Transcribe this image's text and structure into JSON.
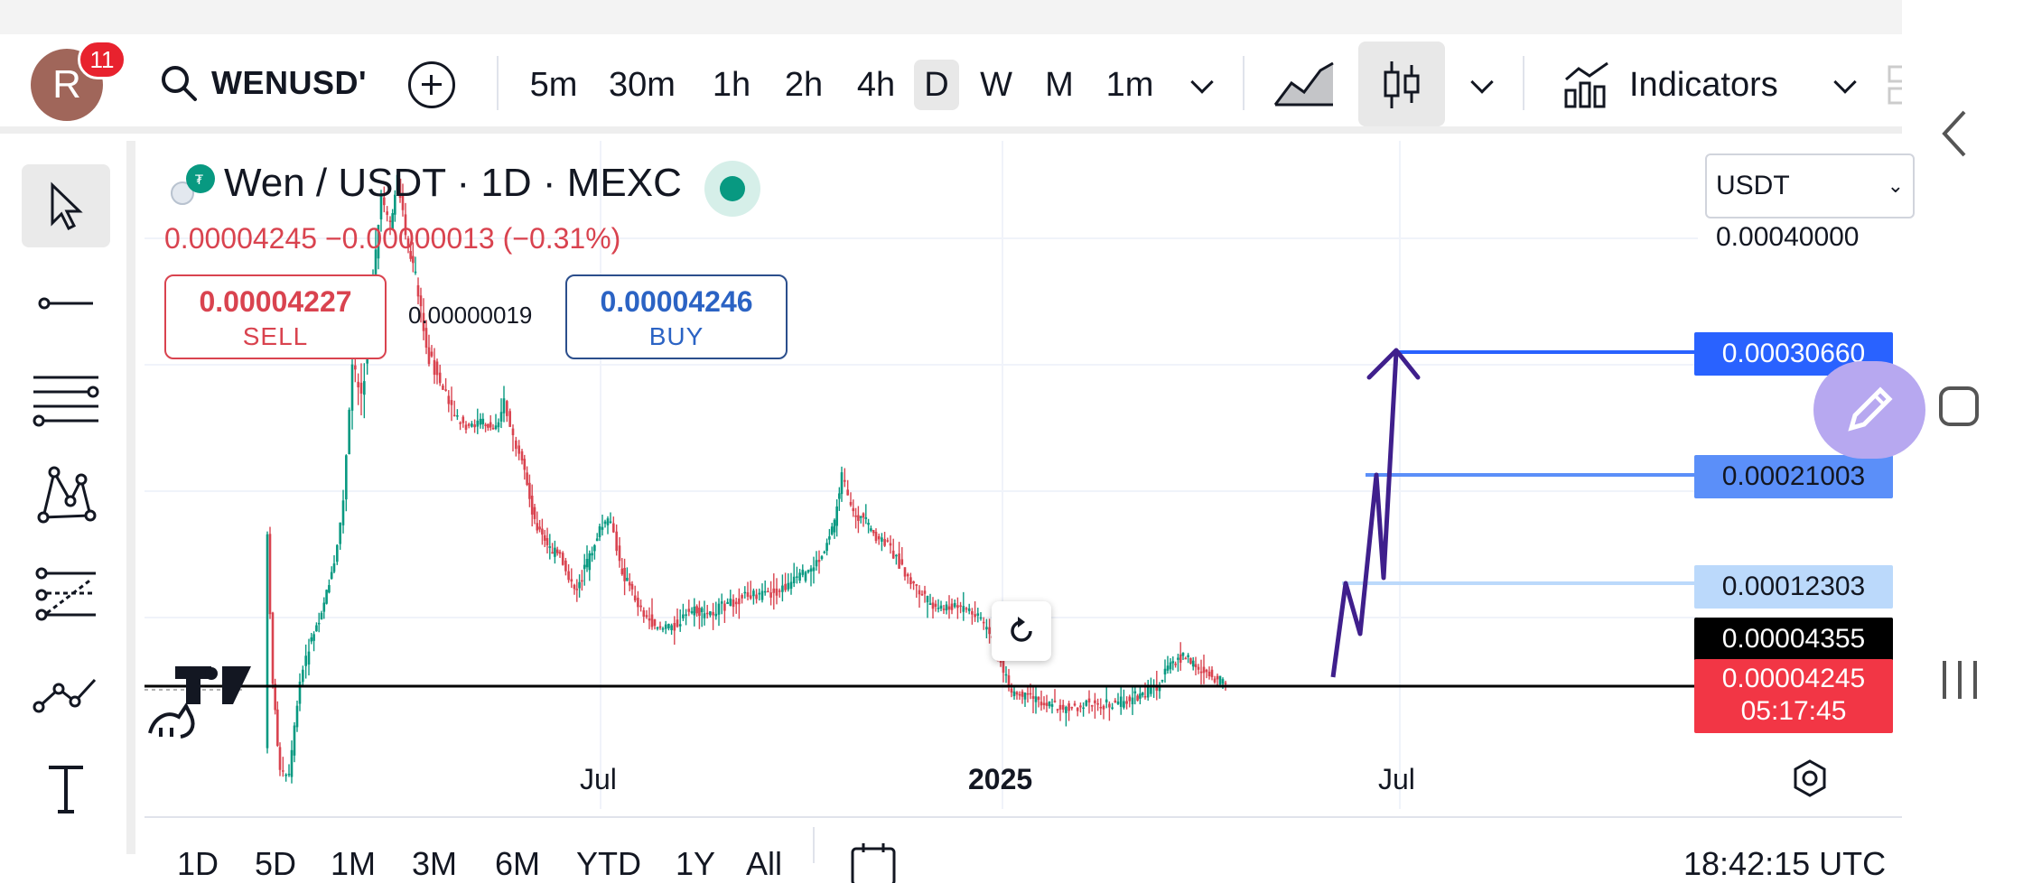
{
  "header": {
    "notification_count": "11",
    "avatar_initial": "R",
    "symbol": "WENUSD'",
    "intervals": [
      "5m",
      "30m",
      "1h",
      "2h",
      "4h",
      "D",
      "W",
      "M",
      "1m"
    ],
    "active_interval": "D",
    "indicators_label": "Indicators"
  },
  "legend": {
    "title": "Wen / USDT · 1D · MEXC",
    "ohlc": "0.00004245 −0.00000013 (−0.31%)",
    "sell_price": "0.00004227",
    "sell_label": "SELL",
    "spread": "0.00000019",
    "buy_price": "0.00004246",
    "buy_label": "BUY"
  },
  "currency": {
    "selected": "USDT"
  },
  "price_scale": {
    "top_label": "0.00040000",
    "labels": [
      {
        "text": "0.00030660",
        "bg": "#2962ff",
        "fg": "#ffffff"
      },
      {
        "text": "0.00021003",
        "bg": "#5b8ff9",
        "fg": "#131722"
      },
      {
        "text": "0.00012303",
        "bg": "#bbd9fb",
        "fg": "#131722"
      },
      {
        "text": "0.00004355",
        "bg": "#000000",
        "fg": "#ffffff"
      },
      {
        "text": "0.00004245",
        "bg": "#f23645",
        "fg": "#ffffff"
      }
    ],
    "countdown": "05:17:45"
  },
  "time_axis": {
    "labels": [
      "Jul",
      "2025",
      "Jul"
    ]
  },
  "bottom": {
    "ranges": [
      "1D",
      "5D",
      "1M",
      "3M",
      "6M",
      "YTD",
      "1Y",
      "All"
    ],
    "clock": "18:42:15 UTC"
  },
  "sidebar": {
    "tools": [
      "cursor-icon",
      "trend-line-icon",
      "fib-retracement-icon",
      "pattern-icon",
      "forecast-icon",
      "path-icon",
      "text-icon"
    ]
  },
  "colors": {
    "up": "#089981",
    "down": "#d9434f",
    "projection": "#3f1f8c",
    "accent": "#2962ff"
  }
}
